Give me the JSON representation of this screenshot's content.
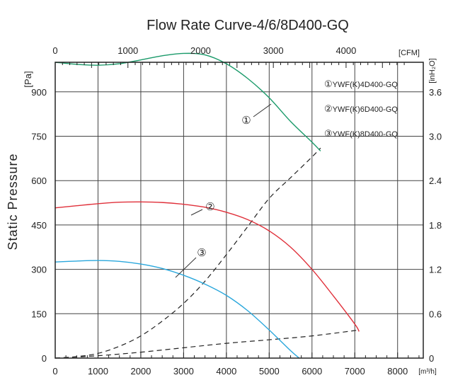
{
  "chart_data": {
    "type": "line",
    "title": "Flow Rate Curve-4/6/8D400-GQ",
    "ylabel": "Static Pressure",
    "y_unit": "[Pa]",
    "y2_unit": "[inH₂O]",
    "x_unit": "[m³/h]",
    "x2_unit": "[CFM]",
    "xlim": [
      0,
      8600
    ],
    "ylim": [
      0,
      1000
    ],
    "x_ticks": [
      "0",
      "1000",
      "2000",
      "3000",
      "4000",
      "5000",
      "6000",
      "7000",
      "8000"
    ],
    "y_ticks": [
      "0",
      "150",
      "300",
      "450",
      "600",
      "750",
      "900"
    ],
    "x2_ticks": [
      "0",
      "1000",
      "2000",
      "3000",
      "4000"
    ],
    "y2_ticks": [
      "0",
      "0.6",
      "1.2",
      "1.8",
      "2.4",
      "3.0",
      "3.6"
    ],
    "grid": true,
    "series": [
      {
        "name": "YWF(K)4D400-GQ",
        "marker": "①",
        "color": "#1a9a6a",
        "x": [
          0,
          500,
          1000,
          1500,
          2000,
          2500,
          3000,
          3500,
          4000,
          4500,
          5000,
          5500,
          6000,
          6200
        ],
        "y": [
          1000,
          993,
          990,
          995,
          1008,
          1022,
          1030,
          1025,
          995,
          945,
          880,
          800,
          730,
          700
        ]
      },
      {
        "name": "YWF(K)6D400-GQ",
        "marker": "②",
        "color": "#e0303a",
        "x": [
          0,
          500,
          1000,
          1500,
          2000,
          2500,
          3000,
          3500,
          4000,
          4500,
          5000,
          5500,
          6000,
          6500,
          7000,
          7100
        ],
        "y": [
          508,
          515,
          522,
          527,
          528,
          526,
          520,
          510,
          493,
          468,
          430,
          375,
          300,
          210,
          115,
          90
        ]
      },
      {
        "name": "YWF(K)8D400-GQ",
        "marker": "③",
        "color": "#2aa7dc",
        "x": [
          0,
          500,
          1000,
          1500,
          2000,
          2500,
          3000,
          3500,
          4000,
          4500,
          5000,
          5500,
          5700
        ],
        "y": [
          325,
          328,
          330,
          327,
          318,
          303,
          280,
          250,
          212,
          160,
          95,
          25,
          0
        ]
      }
    ],
    "system_curves": [
      {
        "style": "dashed",
        "x": [
          0,
          500,
          1000,
          1500,
          2000,
          2500,
          3000,
          3500,
          4000,
          4500,
          5000,
          5500,
          6000,
          6200
        ],
        "y": [
          0,
          5,
          16,
          40,
          75,
          125,
          185,
          260,
          350,
          445,
          540,
          610,
          680,
          710
        ]
      },
      {
        "style": "dashed",
        "x": [
          0,
          1000,
          2000,
          3000,
          4000,
          5000,
          6000,
          7100
        ],
        "y": [
          0,
          8,
          20,
          35,
          50,
          62,
          75,
          95
        ]
      }
    ]
  }
}
